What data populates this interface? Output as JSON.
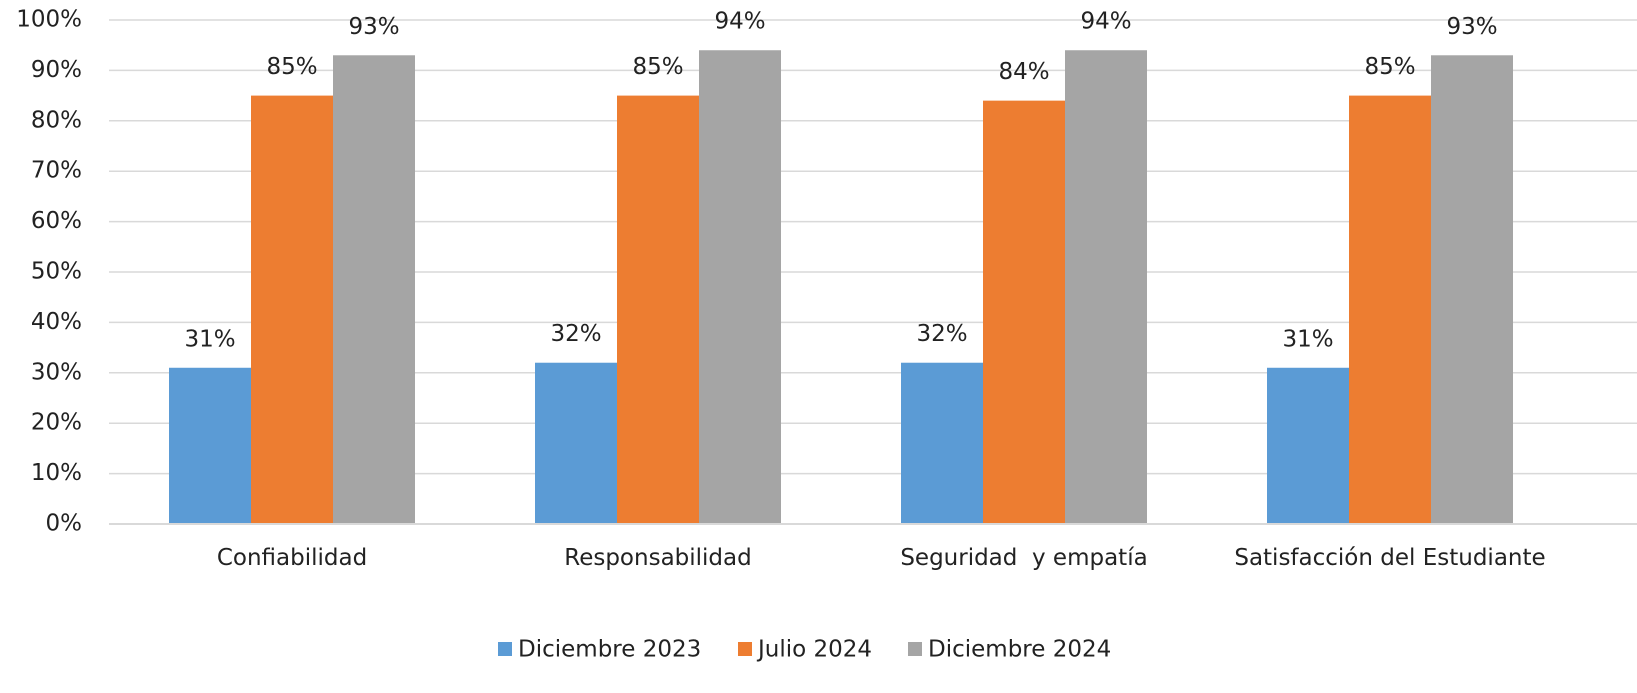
{
  "chart_data": {
    "type": "bar",
    "categories": [
      "Confiabilidad",
      "Responsabilidad",
      "Seguridad  y empatía",
      "Satisfacción del Estudiante"
    ],
    "series": [
      {
        "name": "Diciembre 2023",
        "color": "#5b9bd5",
        "values": [
          31,
          32,
          32,
          31
        ],
        "value_labels": [
          "31%",
          "32%",
          "32%",
          "31%"
        ]
      },
      {
        "name": "Julio 2024",
        "color": "#ed7d31",
        "values": [
          85,
          85,
          84,
          85
        ],
        "value_labels": [
          "85%",
          "85%",
          "84%",
          "85%"
        ]
      },
      {
        "name": "Diciembre 2024",
        "color": "#a5a5a5",
        "values": [
          93,
          94,
          94,
          93
        ],
        "value_labels": [
          "93%",
          "94%",
          "94%",
          "93%"
        ]
      }
    ],
    "ylim": [
      0,
      100
    ],
    "yticks": [
      {
        "value": 0,
        "label": "0%"
      },
      {
        "value": 10,
        "label": "10%"
      },
      {
        "value": 20,
        "label": "20%"
      },
      {
        "value": 30,
        "label": "30%"
      },
      {
        "value": 40,
        "label": "40%"
      },
      {
        "value": 50,
        "label": "50%"
      },
      {
        "value": 60,
        "label": "60%"
      },
      {
        "value": 70,
        "label": "70%"
      },
      {
        "value": 80,
        "label": "80%"
      },
      {
        "value": 90,
        "label": "90%"
      },
      {
        "value": 100,
        "label": "100%"
      }
    ],
    "grid": true,
    "legend": "bottom"
  }
}
